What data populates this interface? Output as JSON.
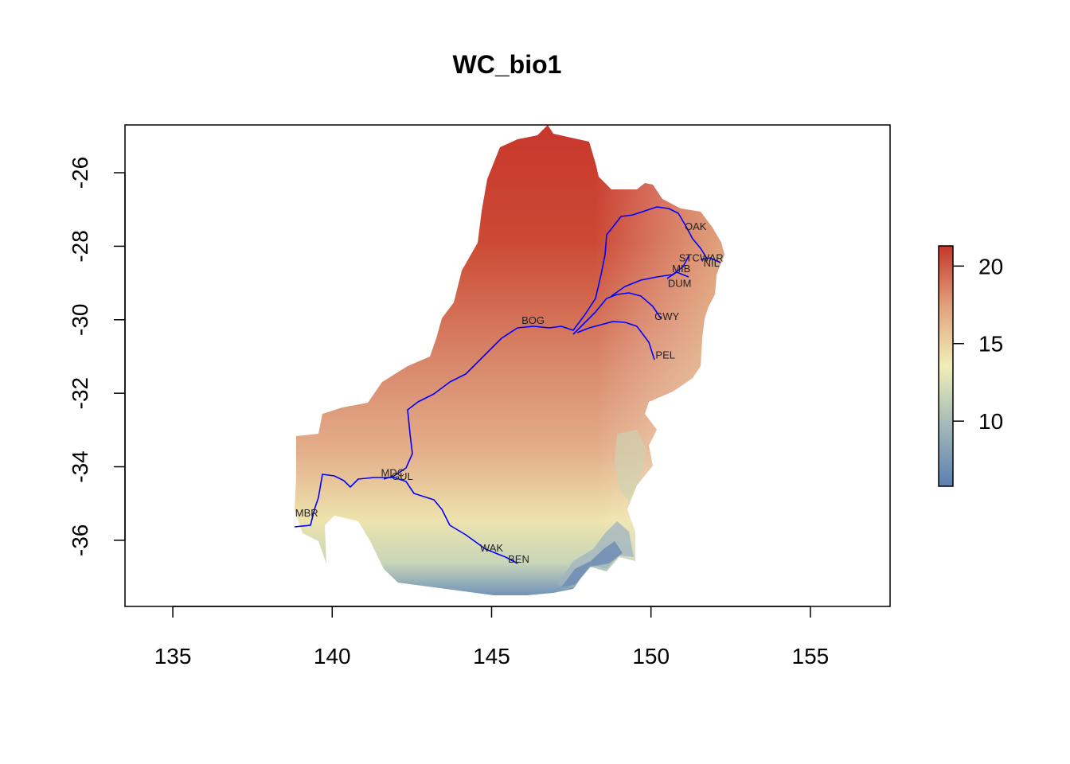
{
  "title": "WC_bio1",
  "map": {
    "xlim": [
      133.5,
      157.5
    ],
    "ylim": [
      -37.8,
      -24.7
    ],
    "x_ticks": [
      "135",
      "140",
      "145",
      "150",
      "155"
    ],
    "x_tick_values": [
      135,
      140,
      145,
      150,
      155
    ],
    "y_ticks": [
      "-26",
      "-28",
      "-30",
      "-32",
      "-34",
      "-36"
    ],
    "y_tick_values": [
      -26,
      -28,
      -30,
      -32,
      -34,
      -36
    ],
    "river_color": "#0000ff",
    "raster_color_low": "#4f7ab0",
    "raster_color_mid": "#f0efb8",
    "raster_color_high": "#c8372c"
  },
  "legend": {
    "min": 5.8,
    "max": 21.3,
    "ticks": [
      "10",
      "15",
      "20"
    ],
    "tick_values": [
      10,
      15,
      20
    ]
  },
  "sites": [
    {
      "code": "OAK",
      "lon": 151.4,
      "lat": -27.45
    },
    {
      "code": "STC",
      "lon": 151.2,
      "lat": -28.3
    },
    {
      "code": "WAR",
      "lon": 151.9,
      "lat": -28.3
    },
    {
      "code": "NIL",
      "lon": 151.9,
      "lat": -28.45
    },
    {
      "code": "MIB",
      "lon": 150.95,
      "lat": -28.6
    },
    {
      "code": "DUM",
      "lon": 150.9,
      "lat": -29.0
    },
    {
      "code": "GWY",
      "lon": 150.5,
      "lat": -29.9
    },
    {
      "code": "PEL",
      "lon": 150.45,
      "lat": -30.95
    },
    {
      "code": "BOG",
      "lon": 146.3,
      "lat": -30.0
    },
    {
      "code": "MDC",
      "lon": 141.9,
      "lat": -34.15
    },
    {
      "code": "GUL",
      "lon": 142.2,
      "lat": -34.25
    },
    {
      "code": "MBR",
      "lon": 139.2,
      "lat": -35.25
    },
    {
      "code": "WAK",
      "lon": 145.0,
      "lat": -36.2
    },
    {
      "code": "BEN",
      "lon": 145.85,
      "lat": -36.5
    }
  ]
}
